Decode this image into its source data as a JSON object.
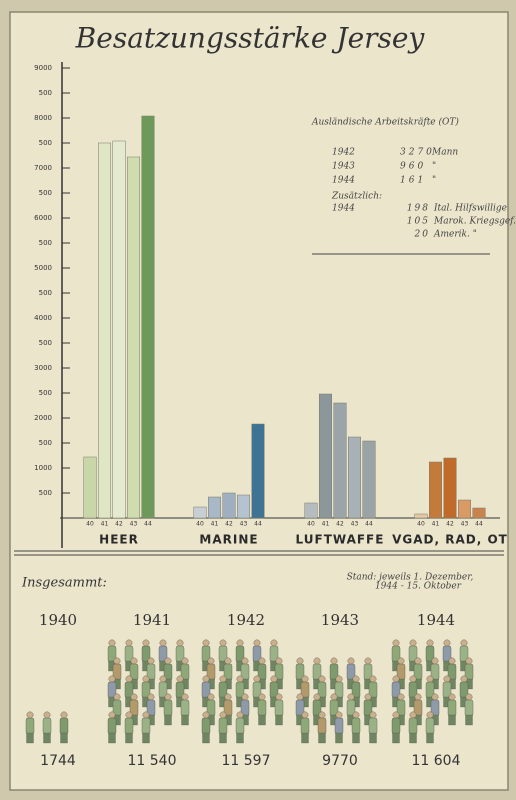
{
  "chart_data": {
    "type": "bar",
    "title": "Besatzungsstärke Jersey",
    "categories": [
      "HEER",
      "MARINE",
      "LUFTWAFFE",
      "VGAD, RAD, OT"
    ],
    "series": [
      {
        "name": "40",
        "color": [
          "#c9d6a8",
          "#c7cfd5",
          "#b5bcbf",
          "#e6c7a4"
        ],
        "values": [
          1220,
          220,
          300,
          80
        ]
      },
      {
        "name": "41",
        "color": [
          "#dfe6c5",
          "#a8b8c6",
          "#8c979c",
          "#c47a3a"
        ],
        "values": [
          7500,
          420,
          2480,
          1120
        ]
      },
      {
        "name": "42",
        "color": [
          "#e4ead0",
          "#9eb0c0",
          "#9aa4a9",
          "#c06a2c"
        ],
        "values": [
          7540,
          500,
          2300,
          1200
        ]
      },
      {
        "name": "43",
        "color": [
          "#cfdcae",
          "#b4c3cf",
          "#a8b1b5",
          "#d99a66"
        ],
        "values": [
          7220,
          460,
          1620,
          360
        ]
      },
      {
        "name": "44",
        "color": [
          "#6d9a5a",
          "#3f7393",
          "#9aa3a6",
          "#c8844c"
        ],
        "values": [
          8040,
          1880,
          1540,
          200
        ]
      }
    ],
    "ylim": [
      0,
      9000
    ],
    "yticks": [
      500,
      1000,
      {
        "value": 1500,
        "label": "500"
      },
      2000,
      {
        "value": 2500,
        "label": "500"
      },
      3000,
      {
        "value": 3500,
        "label": "500"
      },
      4000,
      {
        "value": 4500,
        "label": "500"
      },
      5000,
      {
        "value": 5500,
        "label": "500"
      },
      6000,
      {
        "value": 6500,
        "label": "500"
      },
      7000,
      {
        "value": 7500,
        "label": "500"
      },
      8000,
      {
        "value": 8500,
        "label": "500"
      },
      9000
    ],
    "annotation": {
      "title": "Ausländische Arbeitskräfte (OT)",
      "rows": [
        [
          "1942",
          "3270",
          "Mann"
        ],
        [
          "1943",
          "960",
          "\""
        ],
        [
          "1944",
          "161",
          "\""
        ]
      ],
      "extra_title": "Zusätzlich:",
      "extra_rows": [
        [
          "1944",
          "198",
          "Ital. Hilfswillige"
        ],
        [
          "",
          "105",
          "Marok. Kriegsgef."
        ],
        [
          "",
          "20",
          "Amerik. \""
        ]
      ]
    },
    "totals": {
      "title": "Insgesammt:",
      "note": [
        "Stand: jeweils 1. Dezember,",
        "1944 - 15. Oktober"
      ],
      "years": [
        "1940",
        "1941",
        "1942",
        "1943",
        "1944"
      ],
      "values": [
        1744,
        {
          "value": 11540,
          "label": "11 540"
        },
        {
          "value": 11597,
          "label": "11 597"
        },
        9770,
        {
          "value": 11604,
          "label": "11 604"
        }
      ]
    }
  }
}
